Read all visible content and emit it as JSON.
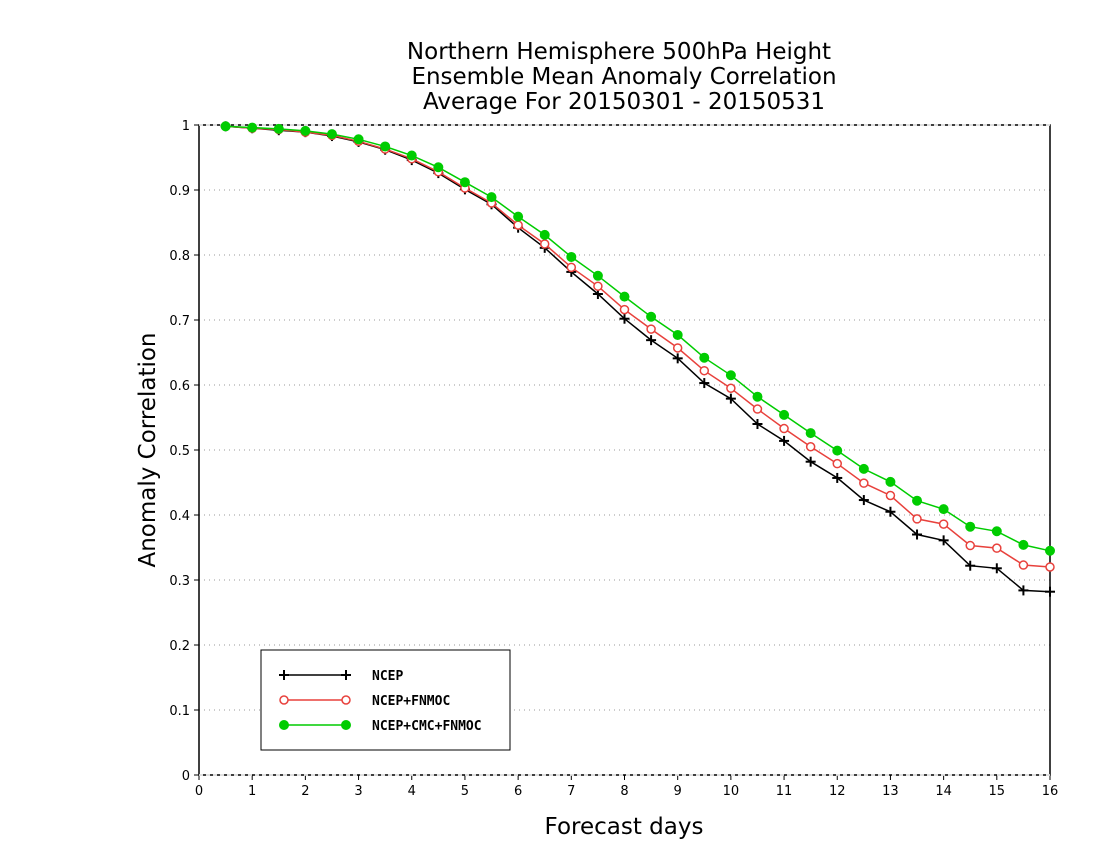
{
  "chart_data": {
    "type": "line",
    "title": [
      "Northern Hemisphere 500hPa Height",
      "Ensemble Mean Anomaly Correlation",
      "Average For 20150301 - 20150531"
    ],
    "xlabel": "Forecast days",
    "ylabel": "Anomaly Correlation",
    "xlim": [
      0,
      16
    ],
    "ylim": [
      0,
      1
    ],
    "xticks": [
      "0",
      "1",
      "2",
      "3",
      "4",
      "5",
      "6",
      "7",
      "8",
      "9",
      "10",
      "11",
      "12",
      "13",
      "14",
      "15",
      "16"
    ],
    "yticks": [
      "0",
      "0.1",
      "0.2",
      "0.3",
      "0.4",
      "0.5",
      "0.6",
      "0.7",
      "0.8",
      "0.9",
      "1"
    ],
    "grid": true,
    "legend_position": "bottom-left",
    "x": [
      0.5,
      1,
      1.5,
      2,
      2.5,
      3,
      3.5,
      4,
      4.5,
      5,
      5.5,
      6,
      6.5,
      7,
      7.5,
      8,
      8.5,
      9,
      9.5,
      10,
      10.5,
      11,
      11.5,
      12,
      12.5,
      13,
      13.5,
      14,
      14.5,
      15,
      15.5,
      16
    ],
    "series": [
      {
        "name": "NCEP",
        "color": "#000000",
        "marker": "plus",
        "values": [
          0.998,
          0.995,
          0.992,
          0.989,
          0.983,
          0.974,
          0.962,
          0.946,
          0.926,
          0.901,
          0.878,
          0.842,
          0.811,
          0.774,
          0.74,
          0.702,
          0.669,
          0.641,
          0.603,
          0.579,
          0.54,
          0.514,
          0.482,
          0.457,
          0.423,
          0.405,
          0.37,
          0.361,
          0.322,
          0.318,
          0.284,
          0.282
        ]
      },
      {
        "name": "NCEP+FNMOC",
        "color": "#e8413c",
        "marker": "open-circle",
        "values": [
          0.998,
          0.995,
          0.993,
          0.989,
          0.984,
          0.975,
          0.963,
          0.948,
          0.928,
          0.903,
          0.88,
          0.846,
          0.817,
          0.781,
          0.752,
          0.716,
          0.686,
          0.657,
          0.622,
          0.595,
          0.563,
          0.533,
          0.505,
          0.479,
          0.449,
          0.43,
          0.394,
          0.386,
          0.353,
          0.349,
          0.323,
          0.32
        ]
      },
      {
        "name": "NCEP+CMC+FNMOC",
        "color": "#00cc00",
        "marker": "filled-circle",
        "values": [
          0.998,
          0.996,
          0.994,
          0.991,
          0.986,
          0.978,
          0.967,
          0.953,
          0.935,
          0.912,
          0.889,
          0.859,
          0.831,
          0.797,
          0.768,
          0.736,
          0.705,
          0.677,
          0.642,
          0.615,
          0.582,
          0.554,
          0.526,
          0.499,
          0.471,
          0.451,
          0.422,
          0.409,
          0.382,
          0.375,
          0.354,
          0.345
        ]
      }
    ]
  }
}
